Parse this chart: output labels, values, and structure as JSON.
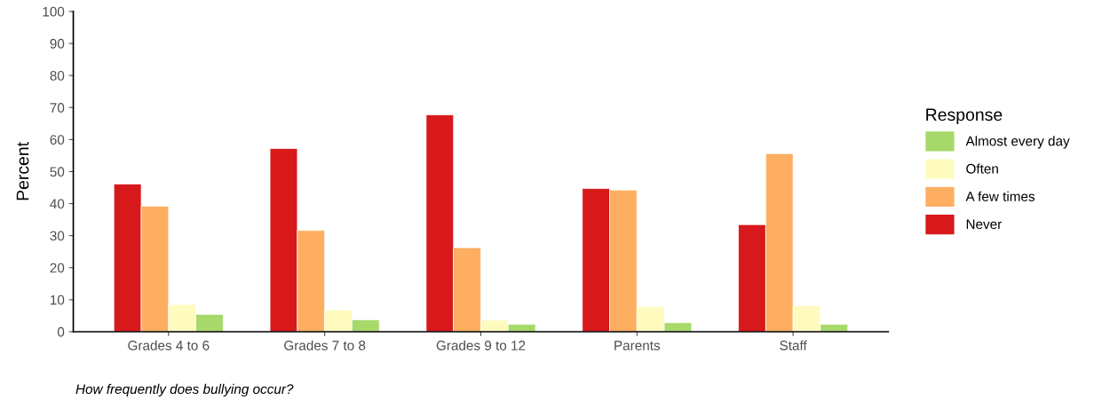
{
  "chart_data": {
    "type": "bar",
    "ylabel": "Percent",
    "legend_title": "Response",
    "categories": [
      "Grades 4 to 6",
      "Grades 7 to 8",
      "Grades 9 to 12",
      "Parents",
      "Staff"
    ],
    "series": [
      {
        "name": "Never",
        "color": "#d7191c",
        "values": [
          46.1,
          57.2,
          67.7,
          44.7,
          33.4
        ]
      },
      {
        "name": "A few times",
        "color": "#fdae61",
        "values": [
          39.2,
          31.6,
          26.2,
          44.2,
          55.6
        ]
      },
      {
        "name": "Often",
        "color": "#fffbbf",
        "values": [
          8.5,
          6.8,
          3.6,
          7.8,
          8.1
        ]
      },
      {
        "name": "Almost every day",
        "color": "#a6d96a",
        "values": [
          5.4,
          3.7,
          2.3,
          2.8,
          2.3
        ]
      }
    ],
    "ylim": [
      0,
      100
    ],
    "yticks": [
      0,
      10,
      20,
      30,
      40,
      50,
      60,
      70,
      80,
      90,
      100
    ],
    "legend": "right",
    "annotations": [
      "How frequently does bullying occur?"
    ]
  }
}
